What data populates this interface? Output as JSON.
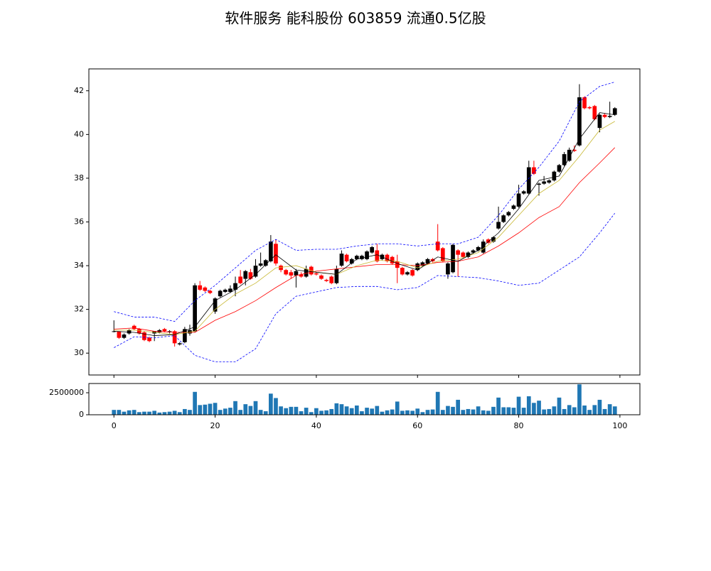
{
  "chart_data": [
    {
      "type": "candlestick",
      "title": "软件服务 能科股份 603859 流通0.5亿股",
      "x": [
        0,
        1,
        2,
        3,
        4,
        5,
        6,
        7,
        8,
        9,
        10,
        11,
        12,
        13,
        14,
        15,
        16,
        17,
        18,
        19,
        20,
        21,
        22,
        23,
        24,
        25,
        26,
        27,
        28,
        29,
        30,
        31,
        32,
        33,
        34,
        35,
        36,
        37,
        38,
        39,
        40,
        41,
        42,
        43,
        44,
        45,
        46,
        47,
        48,
        49,
        50,
        51,
        52,
        53,
        54,
        55,
        56,
        57,
        58,
        59,
        60,
        61,
        62,
        63,
        64,
        65,
        66,
        67,
        68,
        69,
        70,
        71,
        72,
        73,
        74,
        75,
        76,
        77,
        78,
        79,
        80,
        81,
        82,
        83,
        84,
        85,
        86,
        87,
        88,
        89,
        90,
        91,
        92,
        93,
        94,
        95,
        96,
        97,
        98,
        99
      ],
      "open": [
        31.0,
        31.0,
        30.7,
        30.9,
        31.25,
        31.1,
        30.95,
        30.7,
        30.9,
        30.95,
        31.1,
        30.95,
        31.0,
        30.4,
        30.5,
        30.9,
        31.0,
        33.1,
        33.0,
        32.85,
        31.9,
        32.6,
        32.8,
        32.8,
        32.9,
        33.5,
        33.4,
        33.7,
        33.5,
        34.0,
        34.0,
        34.2,
        35.0,
        34.0,
        33.8,
        33.7,
        33.55,
        33.6,
        33.5,
        33.95,
        33.65,
        33.55,
        33.35,
        33.5,
        33.2,
        34.0,
        34.5,
        34.1,
        34.3,
        34.3,
        34.3,
        34.6,
        34.7,
        34.3,
        34.5,
        34.4,
        34.2,
        33.9,
        33.6,
        33.8,
        33.8,
        34.0,
        34.1,
        34.3,
        35.1,
        34.8,
        33.6,
        33.7,
        34.7,
        34.6,
        34.4,
        34.6,
        34.7,
        34.6,
        35.2,
        35.1,
        35.7,
        36.0,
        36.3,
        36.6,
        36.7,
        37.3,
        37.3,
        38.5,
        37.7,
        37.75,
        37.8,
        37.9,
        38.3,
        38.6,
        38.8,
        39.3,
        39.5,
        41.7,
        41.25,
        41.3,
        40.3,
        40.9,
        40.8,
        40.9
      ],
      "high": [
        31.5,
        31.0,
        30.9,
        31.1,
        31.3,
        31.15,
        31.0,
        30.75,
        31.0,
        31.1,
        31.15,
        31.05,
        31.05,
        30.5,
        31.2,
        31.3,
        33.2,
        33.3,
        33.05,
        32.9,
        32.55,
        32.9,
        32.95,
        33.1,
        33.5,
        33.8,
        33.8,
        33.85,
        34.3,
        34.6,
        34.3,
        35.4,
        35.2,
        34.05,
        33.85,
        33.8,
        33.85,
        33.7,
        34.0,
        34.0,
        33.7,
        33.6,
        33.4,
        33.55,
        34.0,
        34.7,
        34.55,
        34.35,
        34.5,
        34.5,
        34.7,
        34.9,
        35.0,
        34.55,
        34.55,
        34.45,
        34.5,
        33.95,
        33.75,
        33.85,
        34.15,
        34.2,
        34.35,
        34.35,
        35.9,
        34.85,
        34.15,
        35.0,
        34.75,
        34.65,
        34.65,
        34.75,
        34.9,
        35.2,
        35.25,
        35.35,
        36.7,
        36.35,
        36.5,
        36.8,
        37.7,
        37.45,
        38.8,
        38.8,
        37.8,
        38.1,
        37.95,
        38.35,
        38.65,
        39.2,
        39.4,
        39.5,
        42.3,
        41.75,
        41.3,
        41.35,
        40.95,
        40.95,
        41.5,
        41.25
      ],
      "low": [
        30.95,
        30.65,
        30.65,
        30.85,
        31.05,
        30.85,
        30.55,
        30.5,
        30.55,
        30.9,
        30.95,
        30.9,
        30.3,
        30.35,
        30.45,
        30.8,
        30.95,
        32.85,
        32.8,
        32.7,
        31.8,
        32.55,
        32.75,
        32.75,
        32.6,
        33.15,
        33.1,
        33.35,
        33.45,
        33.95,
        33.95,
        34.15,
        34.0,
        33.7,
        33.55,
        33.4,
        33.0,
        33.45,
        33.45,
        33.55,
        33.55,
        33.35,
        33.25,
        33.15,
        33.15,
        33.95,
        34.15,
        34.05,
        34.25,
        34.25,
        34.25,
        34.55,
        34.15,
        34.25,
        34.15,
        34.05,
        33.2,
        33.55,
        33.55,
        33.5,
        33.75,
        33.95,
        34.05,
        34.15,
        34.65,
        34.15,
        33.4,
        33.65,
        33.5,
        34.35,
        34.35,
        34.55,
        34.65,
        34.55,
        35.0,
        35.05,
        35.65,
        35.95,
        36.25,
        36.55,
        36.65,
        37.25,
        37.25,
        38.15,
        37.2,
        37.7,
        37.75,
        37.85,
        38.25,
        38.55,
        38.75,
        39.2,
        39.45,
        41.15,
        41.15,
        40.65,
        40.1,
        40.75,
        40.75,
        40.85
      ],
      "close": [
        31.0,
        30.7,
        30.85,
        31.05,
        31.1,
        30.9,
        30.6,
        30.55,
        31.0,
        31.05,
        31.0,
        31.0,
        30.45,
        30.45,
        31.1,
        31.05,
        33.1,
        32.9,
        32.85,
        32.75,
        32.5,
        32.85,
        32.9,
        32.95,
        33.2,
        33.2,
        33.75,
        33.4,
        34.0,
        34.1,
        34.25,
        35.1,
        34.1,
        33.8,
        33.6,
        33.55,
        33.75,
        33.5,
        33.85,
        33.6,
        33.6,
        33.4,
        33.3,
        33.2,
        33.85,
        34.55,
        34.2,
        34.3,
        34.45,
        34.45,
        34.65,
        34.85,
        34.2,
        34.5,
        34.2,
        34.1,
        33.9,
        33.6,
        33.7,
        33.55,
        34.1,
        34.15,
        34.3,
        34.2,
        34.7,
        34.2,
        34.1,
        34.95,
        34.5,
        34.4,
        34.6,
        34.7,
        34.85,
        35.1,
        35.05,
        35.3,
        36.0,
        36.3,
        36.45,
        36.75,
        37.3,
        37.4,
        38.5,
        38.2,
        37.75,
        37.85,
        37.9,
        38.3,
        38.6,
        39.1,
        39.3,
        39.25,
        41.7,
        41.2,
        41.2,
        40.7,
        40.9,
        40.8,
        40.85,
        41.2
      ],
      "colorup": "#000000",
      "colordown": "#ff0000",
      "series": [
        {
          "color": "#0000ff",
          "dashed": true,
          "x": [
            0,
            4,
            8,
            12,
            16,
            20,
            24,
            28,
            32,
            36,
            40,
            44,
            48,
            52,
            56,
            60,
            64,
            68,
            72,
            76,
            80,
            84,
            88,
            92,
            96,
            99
          ],
          "values": [
            31.9,
            31.65,
            31.65,
            31.45,
            32.4,
            33.1,
            33.9,
            34.7,
            35.2,
            34.7,
            34.75,
            34.75,
            34.9,
            35.0,
            35.0,
            34.9,
            35.0,
            35.0,
            35.3,
            36.3,
            37.5,
            38.5,
            39.7,
            41.5,
            42.2,
            42.4
          ]
        },
        {
          "color": "#0000ff",
          "dashed": true,
          "x": [
            0,
            4,
            8,
            12,
            16,
            20,
            24,
            28,
            32,
            36,
            40,
            44,
            48,
            52,
            56,
            60,
            64,
            68,
            72,
            76,
            80,
            84,
            88,
            92,
            96,
            99
          ],
          "values": [
            30.25,
            30.75,
            30.7,
            30.8,
            29.9,
            29.6,
            29.6,
            30.2,
            31.8,
            32.6,
            32.8,
            33.0,
            33.05,
            33.05,
            32.9,
            33.0,
            33.55,
            33.5,
            33.45,
            33.3,
            33.1,
            33.2,
            33.8,
            34.4,
            35.5,
            36.4
          ]
        },
        {
          "color": "#ff0000",
          "dashed": false,
          "x": [
            0,
            4,
            8,
            12,
            16,
            20,
            24,
            28,
            32,
            36,
            40,
            44,
            48,
            52,
            56,
            60,
            64,
            68,
            72,
            76,
            80,
            84,
            88,
            92,
            96,
            99
          ],
          "values": [
            31.1,
            31.15,
            31.0,
            30.95,
            30.95,
            31.5,
            31.9,
            32.4,
            33.0,
            33.55,
            33.75,
            33.85,
            33.95,
            34.05,
            34.05,
            34.0,
            34.15,
            34.2,
            34.4,
            34.9,
            35.5,
            36.2,
            36.7,
            37.8,
            38.7,
            39.4
          ]
        },
        {
          "color": "#c8b832",
          "dashed": false,
          "x": [
            0,
            4,
            8,
            12,
            16,
            20,
            24,
            28,
            32,
            36,
            40,
            44,
            48,
            52,
            56,
            60,
            64,
            68,
            72,
            76,
            80,
            84,
            88,
            92,
            96,
            99
          ],
          "values": [
            31.05,
            31.05,
            30.95,
            30.85,
            31.0,
            32.0,
            32.7,
            33.2,
            33.9,
            34.0,
            33.7,
            33.6,
            34.0,
            34.25,
            34.2,
            33.9,
            34.2,
            34.3,
            34.6,
            35.3,
            36.3,
            37.3,
            37.9,
            39.0,
            40.2,
            40.6
          ]
        },
        {
          "color": "#000000",
          "dashed": false,
          "x": [
            0,
            4,
            8,
            12,
            16,
            20,
            24,
            28,
            32,
            36,
            40,
            44,
            48,
            52,
            56,
            60,
            64,
            68,
            72,
            76,
            80,
            84,
            88,
            92,
            96,
            99
          ],
          "values": [
            31.0,
            30.95,
            30.8,
            30.85,
            31.2,
            32.4,
            32.9,
            33.6,
            34.5,
            33.8,
            33.7,
            33.6,
            34.3,
            34.5,
            34.1,
            33.8,
            34.4,
            34.2,
            34.7,
            35.5,
            36.6,
            37.9,
            38.1,
            39.8,
            41.0,
            40.9
          ]
        }
      ],
      "xlim": [
        -4.95,
        103.95
      ],
      "xticks": [
        0,
        20,
        40,
        60,
        80,
        100
      ],
      "ylim": [
        29,
        43
      ],
      "yticks": [
        30,
        32,
        34,
        36,
        38,
        40,
        42
      ]
    },
    {
      "type": "bar",
      "x": [
        0,
        1,
        2,
        3,
        4,
        5,
        6,
        7,
        8,
        9,
        10,
        11,
        12,
        13,
        14,
        15,
        16,
        17,
        18,
        19,
        20,
        21,
        22,
        23,
        24,
        25,
        26,
        27,
        28,
        29,
        30,
        31,
        32,
        33,
        34,
        35,
        36,
        37,
        38,
        39,
        40,
        41,
        42,
        43,
        44,
        45,
        46,
        47,
        48,
        49,
        50,
        51,
        52,
        53,
        54,
        55,
        56,
        57,
        58,
        59,
        60,
        61,
        62,
        63,
        64,
        65,
        66,
        67,
        68,
        69,
        70,
        71,
        72,
        73,
        74,
        75,
        76,
        77,
        78,
        79,
        80,
        81,
        82,
        83,
        84,
        85,
        86,
        87,
        88,
        89,
        90,
        91,
        92,
        93,
        94,
        95,
        96,
        97,
        98,
        99
      ],
      "values": [
        550000,
        550000,
        350000,
        500000,
        550000,
        300000,
        350000,
        350000,
        450000,
        250000,
        300000,
        350000,
        450000,
        300000,
        650000,
        550000,
        2600000,
        1100000,
        1150000,
        1250000,
        1350000,
        550000,
        700000,
        800000,
        1550000,
        550000,
        1200000,
        1000000,
        1550000,
        550000,
        400000,
        2400000,
        1900000,
        950000,
        750000,
        900000,
        900000,
        400000,
        800000,
        300000,
        750000,
        450000,
        500000,
        650000,
        1300000,
        1200000,
        950000,
        750000,
        1050000,
        400000,
        800000,
        700000,
        1000000,
        350000,
        500000,
        600000,
        1500000,
        450000,
        500000,
        450000,
        700000,
        300000,
        550000,
        600000,
        2600000,
        550000,
        1000000,
        900000,
        1700000,
        550000,
        650000,
        600000,
        950000,
        500000,
        450000,
        900000,
        1950000,
        850000,
        850000,
        800000,
        2050000,
        800000,
        2100000,
        1350000,
        1600000,
        600000,
        650000,
        950000,
        1950000,
        650000,
        1100000,
        850000,
        3450000,
        1050000,
        550000,
        1100000,
        1700000,
        650000,
        1200000,
        950000
      ],
      "color": "#1f77b4",
      "xlim": [
        -4.95,
        103.95
      ],
      "xticks": [
        0,
        20,
        40,
        60,
        80,
        100
      ],
      "ylim": [
        0,
        3550000
      ],
      "yticks": [
        0,
        2500000
      ]
    }
  ]
}
